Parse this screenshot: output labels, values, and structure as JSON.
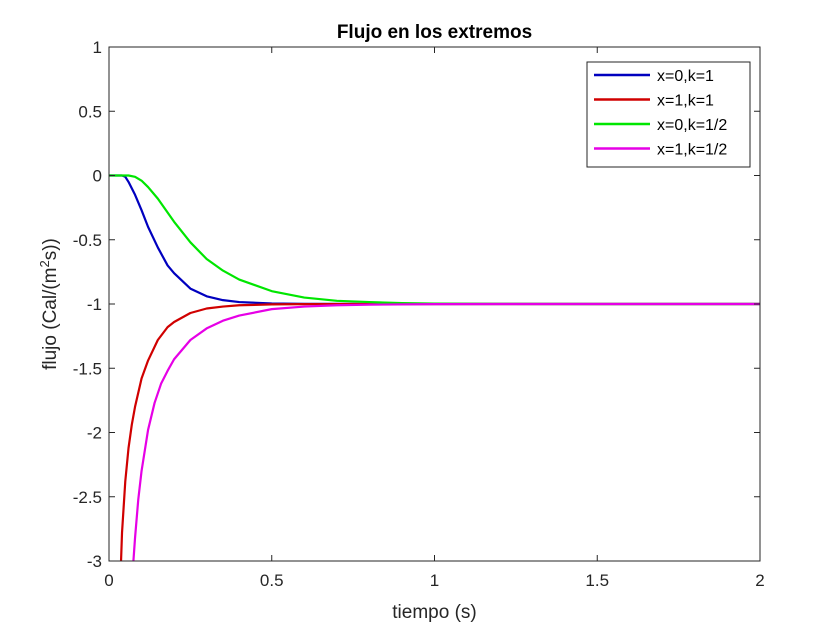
{
  "chart_data": {
    "type": "line",
    "title": "Flujo en los extremos",
    "xlabel": "tiempo (s)",
    "ylabel": "flujo (Cal/(m^2s))",
    "ylabel_parts": {
      "before": "flujo (Cal/(m",
      "sup": "2",
      "after": "s))"
    },
    "xlim": [
      0,
      2
    ],
    "ylim": [
      -3,
      1
    ],
    "xticks": [
      0,
      0.5,
      1,
      1.5,
      2
    ],
    "xtick_labels": [
      "0",
      "0.5",
      "1",
      "1.5",
      "2"
    ],
    "yticks": [
      1,
      0.5,
      0,
      -0.5,
      -1,
      -1.5,
      -2,
      -2.5,
      -3
    ],
    "ytick_labels": [
      "1",
      "0.5",
      "0",
      "-0.5",
      "-1",
      "-1.5",
      "-2",
      "-2.5",
      "-3"
    ],
    "grid": false,
    "legend_position": "top-right",
    "series": [
      {
        "name": "x=0,k=1",
        "color": "#0000bf",
        "x": [
          0.0,
          0.02,
          0.03,
          0.04,
          0.05,
          0.06,
          0.08,
          0.1,
          0.12,
          0.15,
          0.18,
          0.2,
          0.25,
          0.3,
          0.35,
          0.4,
          0.5,
          0.6,
          0.8,
          1.0,
          1.5,
          2.0
        ],
        "y": [
          0.0,
          0.0,
          0.0,
          0.0,
          -0.01,
          -0.05,
          -0.15,
          -0.27,
          -0.4,
          -0.56,
          -0.7,
          -0.76,
          -0.88,
          -0.94,
          -0.97,
          -0.985,
          -0.996,
          -0.999,
          -1.0,
          -1.0,
          -1.0,
          -1.0
        ]
      },
      {
        "name": "x=1,k=1",
        "color": "#d00000",
        "x": [
          0.037,
          0.04,
          0.05,
          0.06,
          0.07,
          0.08,
          0.1,
          0.12,
          0.15,
          0.18,
          0.2,
          0.25,
          0.3,
          0.35,
          0.4,
          0.5,
          0.6,
          0.8,
          1.0,
          1.5,
          2.0
        ],
        "y": [
          -3.0,
          -2.78,
          -2.38,
          -2.12,
          -1.94,
          -1.8,
          -1.58,
          -1.44,
          -1.28,
          -1.18,
          -1.14,
          -1.07,
          -1.035,
          -1.02,
          -1.01,
          -1.003,
          -1.001,
          -1.0,
          -1.0,
          -1.0,
          -1.0
        ]
      },
      {
        "name": "x=0,k=1/2",
        "color": "#00e600",
        "x": [
          0.0,
          0.04,
          0.06,
          0.08,
          0.1,
          0.12,
          0.15,
          0.2,
          0.25,
          0.3,
          0.35,
          0.4,
          0.5,
          0.6,
          0.7,
          0.8,
          0.9,
          1.0,
          1.2,
          1.5,
          2.0
        ],
        "y": [
          0.0,
          0.0,
          0.0,
          -0.01,
          -0.04,
          -0.09,
          -0.18,
          -0.36,
          -0.52,
          -0.65,
          -0.74,
          -0.81,
          -0.9,
          -0.95,
          -0.975,
          -0.985,
          -0.993,
          -0.997,
          -0.999,
          -1.0,
          -1.0
        ]
      },
      {
        "name": "x=1,k=1/2",
        "color": "#e600e6",
        "x": [
          0.075,
          0.08,
          0.09,
          0.1,
          0.12,
          0.14,
          0.16,
          0.18,
          0.2,
          0.25,
          0.3,
          0.35,
          0.4,
          0.5,
          0.6,
          0.7,
          0.8,
          1.0,
          1.2,
          1.5,
          2.0
        ],
        "y": [
          -3.0,
          -2.82,
          -2.52,
          -2.3,
          -1.98,
          -1.77,
          -1.62,
          -1.52,
          -1.43,
          -1.28,
          -1.19,
          -1.13,
          -1.09,
          -1.04,
          -1.02,
          -1.01,
          -1.005,
          -1.001,
          -1.0,
          -1.0,
          -1.0
        ]
      }
    ]
  }
}
